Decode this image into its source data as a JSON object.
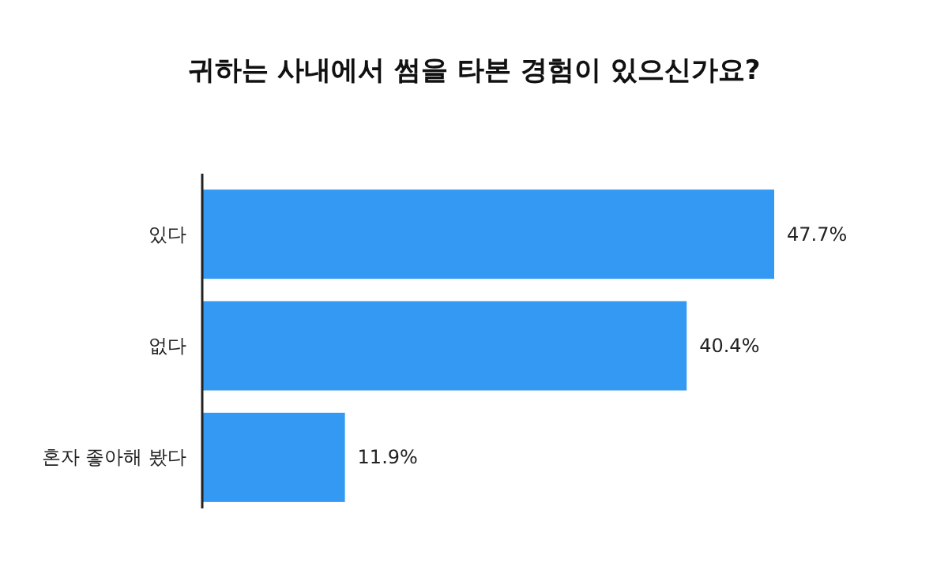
{
  "chart_data": {
    "type": "bar",
    "orientation": "horizontal",
    "title": "귀하는 사내에서 썸을 타본 경험이 있으신가요?",
    "categories": [
      "있다",
      "없다",
      "혼자 좋아해 봤다"
    ],
    "values": [
      47.7,
      40.4,
      11.9
    ],
    "value_labels": [
      "47.7%",
      "40.4%",
      "11.9%"
    ],
    "color": "#3399f3"
  }
}
